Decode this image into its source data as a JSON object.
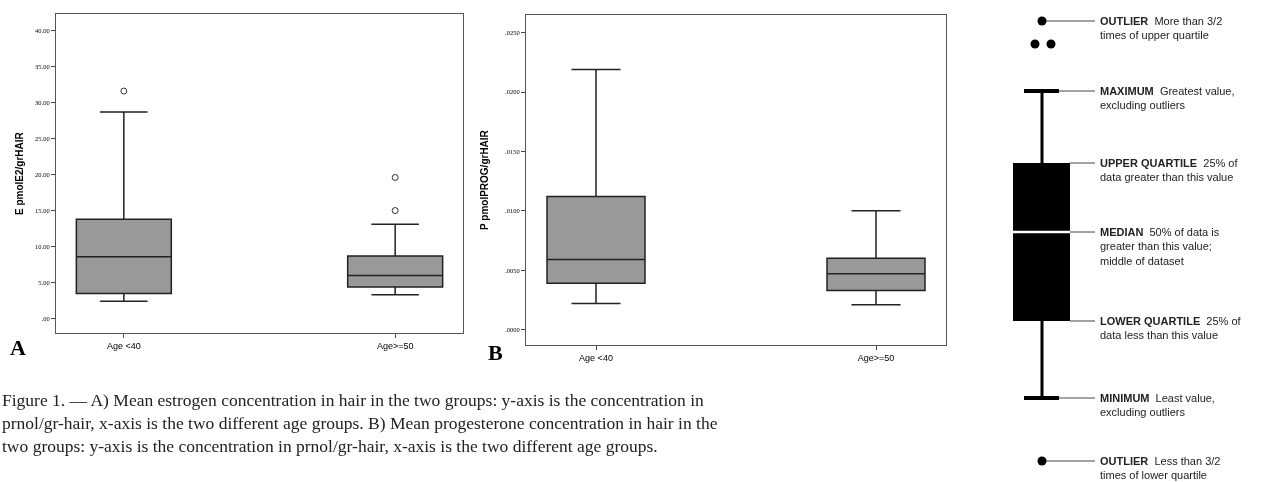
{
  "chart_data": [
    {
      "type": "box",
      "ylabel": "E pmolE2/grHAIR",
      "categories": [
        "Age <40",
        "Age>=50"
      ],
      "color": "#999999",
      "boxes": [
        {
          "low": 2.4,
          "q1": 3.5,
          "median": 8.6,
          "q3": 13.8,
          "high": 28.7,
          "outliers": [
            31.6
          ]
        },
        {
          "low": 3.3,
          "q1": 4.4,
          "median": 6.0,
          "q3": 8.7,
          "high": 13.1,
          "outliers": [
            19.6,
            15.0
          ]
        }
      ],
      "ylim": [
        -2,
        42.3
      ],
      "yticks": [
        {
          "value": 0,
          "label": ".00"
        },
        {
          "value": 5,
          "label": "5.00"
        },
        {
          "value": 10,
          "label": "10.00"
        },
        {
          "value": 15,
          "label": "15.00"
        },
        {
          "value": 20,
          "label": "20.00"
        },
        {
          "value": 25,
          "label": "25.00"
        },
        {
          "value": 30,
          "label": "30.00"
        },
        {
          "value": 35,
          "label": "35.00"
        },
        {
          "value": 40,
          "label": "40.00"
        }
      ],
      "annotations": [
        "A",
        "Figure 1. — A) Mean estrogen concentration in hair in the two groups: y-axis is the concentration in\nprnol/gr-hair, x-axis is the two different age groups. B) Mean progesterone concentration in hair in the\ntwo groups: y-axis is the concentration in prnol/gr-hair, x-axis is the two different age groups."
      ]
    },
    {
      "type": "box",
      "ylabel": "P pmolPROG/grHAIR",
      "categories": [
        "Age <40",
        "Age>=50"
      ],
      "color": "#999999",
      "boxes": [
        {
          "low": 0.0022,
          "q1": 0.0039,
          "median": 0.0059,
          "q3": 0.0112,
          "high": 0.0219
        },
        {
          "low": 0.0021,
          "q1": 0.0033,
          "median": 0.0047,
          "q3": 0.006,
          "high": 0.01
        }
      ],
      "ylim": [
        -0.0013,
        0.0265
      ],
      "yticks": [
        {
          "value": 0,
          "label": ".0000"
        },
        {
          "value": 0.005,
          "label": ".0050"
        },
        {
          "value": 0.01,
          "label": ".0100"
        },
        {
          "value": 0.015,
          "label": ".0150"
        },
        {
          "value": 0.02,
          "label": ".0200"
        },
        {
          "value": 0.025,
          "label": ".0250"
        }
      ],
      "annotations": [
        "B"
      ]
    },
    {
      "type": "other",
      "annotations": [
        "OUTLIER  More than 3/2\ntimes of upper quartile",
        "MAXIMUM  Greatest value,\nexcluding outliers",
        "UPPER QUARTILE  25% of\ndata greater than this value",
        "MEDIAN  50% of data is\ngreater than this value;\nmiddle of dataset",
        "LOWER QUARTILE  25% of\ndata less than this value",
        "MINIMUM  Least value,\nexcluding outliers",
        "OUTLIER  Less than 3/2\ntimes of lower quartile"
      ]
    }
  ]
}
